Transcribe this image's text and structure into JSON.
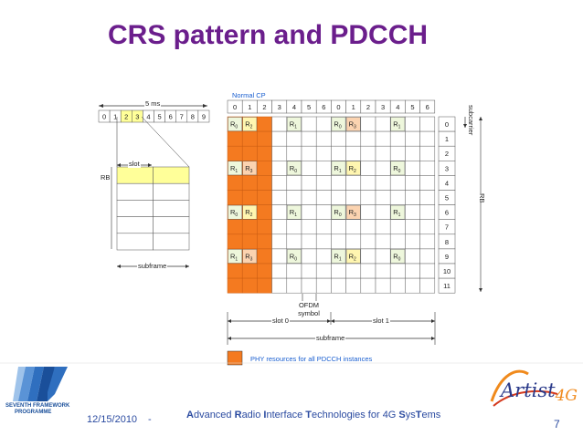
{
  "slide": {
    "title": "CRS pattern and PDCCH",
    "page_number": "7"
  },
  "left_diagram": {
    "span_label": "5 ms",
    "subframe_indices": [
      "0",
      "1",
      "2",
      "3",
      "4",
      "5",
      "6",
      "7",
      "8",
      "9"
    ],
    "highlighted_indices": [
      2,
      3
    ],
    "slot_label": "slot",
    "rb_label": "RB",
    "subframe_label": "subframe"
  },
  "grid": {
    "cp_label": "Normal CP",
    "symbol_indices": [
      "0",
      "1",
      "2",
      "3",
      "4",
      "5",
      "6",
      "0",
      "1",
      "2",
      "3",
      "4",
      "5",
      "6"
    ],
    "subcarrier_indices": [
      "0",
      "1",
      "2",
      "3",
      "4",
      "5",
      "6",
      "7",
      "8",
      "9",
      "10",
      "11"
    ],
    "subcarrier_label": "subcarrier",
    "rb_label": "RB",
    "ofdm_symbol_label": [
      "OFDM",
      "symbol"
    ],
    "slot0_label": "slot 0",
    "slot1_label": "slot 1",
    "subframe_label": "subframe",
    "pdcch_symbols": 3,
    "crs": [
      {
        "row": 0,
        "col": 0,
        "base": "R",
        "sub": "0",
        "fill": "#eef7dc"
      },
      {
        "row": 0,
        "col": 1,
        "base": "R",
        "sub": "2",
        "fill": "#fff6b0"
      },
      {
        "row": 0,
        "col": 4,
        "base": "R",
        "sub": "1",
        "fill": "#eef7dc"
      },
      {
        "row": 0,
        "col": 7,
        "base": "R",
        "sub": "0",
        "fill": "#eef7dc"
      },
      {
        "row": 0,
        "col": 8,
        "base": "R",
        "sub": "3",
        "fill": "#fbd3b0"
      },
      {
        "row": 0,
        "col": 11,
        "base": "R",
        "sub": "1",
        "fill": "#eef7dc"
      },
      {
        "row": 3,
        "col": 0,
        "base": "R",
        "sub": "1",
        "fill": "#eef7dc"
      },
      {
        "row": 3,
        "col": 1,
        "base": "R",
        "sub": "3",
        "fill": "#fbd3b0"
      },
      {
        "row": 3,
        "col": 4,
        "base": "R",
        "sub": "0",
        "fill": "#eef7dc"
      },
      {
        "row": 3,
        "col": 7,
        "base": "R",
        "sub": "1",
        "fill": "#eef7dc"
      },
      {
        "row": 3,
        "col": 8,
        "base": "R",
        "sub": "2",
        "fill": "#fff6b0"
      },
      {
        "row": 3,
        "col": 11,
        "base": "R",
        "sub": "0",
        "fill": "#eef7dc"
      },
      {
        "row": 6,
        "col": 0,
        "base": "R",
        "sub": "0",
        "fill": "#eef7dc"
      },
      {
        "row": 6,
        "col": 1,
        "base": "R",
        "sub": "2",
        "fill": "#fff6b0"
      },
      {
        "row": 6,
        "col": 4,
        "base": "R",
        "sub": "1",
        "fill": "#eef7dc"
      },
      {
        "row": 6,
        "col": 7,
        "base": "R",
        "sub": "0",
        "fill": "#eef7dc"
      },
      {
        "row": 6,
        "col": 8,
        "base": "R",
        "sub": "3",
        "fill": "#fbd3b0"
      },
      {
        "row": 6,
        "col": 11,
        "base": "R",
        "sub": "1",
        "fill": "#eef7dc"
      },
      {
        "row": 9,
        "col": 0,
        "base": "R",
        "sub": "1",
        "fill": "#eef7dc"
      },
      {
        "row": 9,
        "col": 1,
        "base": "R",
        "sub": "3",
        "fill": "#fbd3b0"
      },
      {
        "row": 9,
        "col": 4,
        "base": "R",
        "sub": "0",
        "fill": "#eef7dc"
      },
      {
        "row": 9,
        "col": 7,
        "base": "R",
        "sub": "1",
        "fill": "#eef7dc"
      },
      {
        "row": 9,
        "col": 8,
        "base": "R",
        "sub": "2",
        "fill": "#fff6b0"
      },
      {
        "row": 9,
        "col": 11,
        "base": "R",
        "sub": "0",
        "fill": "#eef7dc"
      }
    ]
  },
  "legend": {
    "label": "PHY resources for all PDCCH instances"
  },
  "footer": {
    "date": "12/15/2010",
    "separator": "-",
    "tagline_parts": [
      {
        "text": "A",
        "b": true
      },
      {
        "text": "dvanced ",
        "b": false
      },
      {
        "text": "R",
        "b": true
      },
      {
        "text": "adio ",
        "b": false
      },
      {
        "text": "I",
        "b": true
      },
      {
        "text": "nterface ",
        "b": false
      },
      {
        "text": "T",
        "b": true
      },
      {
        "text": "echnologies for 4G ",
        "b": false
      },
      {
        "text": "S",
        "b": true
      },
      {
        "text": "ys",
        "b": false
      },
      {
        "text": "T",
        "b": true
      },
      {
        "text": "ems",
        "b": false
      }
    ],
    "logo_left_lines": [
      "SEVENTH FRAMEWORK",
      "PROGRAMME"
    ],
    "logo_right_text": "Artist",
    "logo_right_suffix": "4G"
  },
  "colors": {
    "pdcch": "#f47a20",
    "grid_line": "#555555",
    "title": "#6b1e8c",
    "highlight": "#ffff99",
    "footer_text": "#2a4aa0",
    "fp7_blue": "#2f6fbf"
  }
}
